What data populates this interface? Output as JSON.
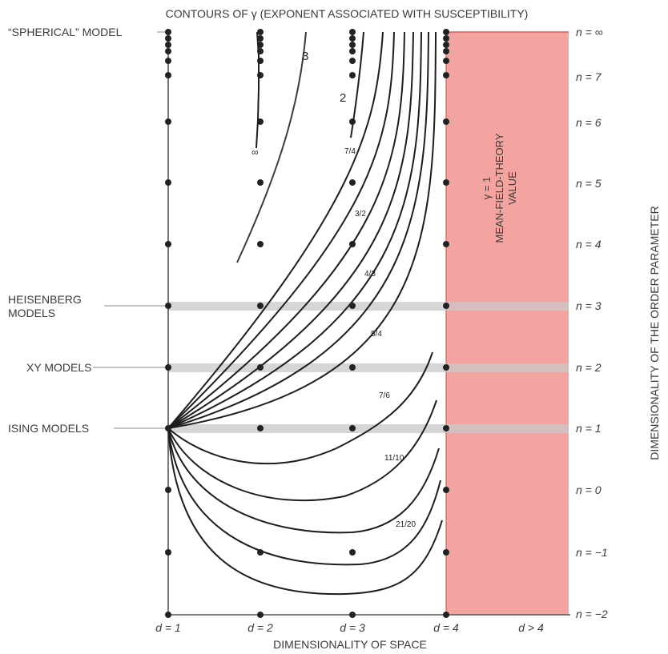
{
  "title": "CONTOURS OF γ (EXPONENT ASSOCIATED WITH SUSCEPTIBILITY)",
  "x_axis_label": "DIMENSIONALITY OF SPACE",
  "y_axis_label": "DIMENSIONALITY OF THE ORDER PARAMETER",
  "d_labels": [
    "d = 1",
    "d = 2",
    "d = 3",
    "d = 4",
    "d > 4"
  ],
  "n_labels": [
    "n = ∞",
    "n = 7",
    "n = 6",
    "n = 5",
    "n = 4",
    "n = 3",
    "n = 2",
    "n = 1",
    "n = 0",
    "n = −1",
    "n = −2"
  ],
  "model_labels": {
    "spherical": "“SPHERICAL” MODEL",
    "heisenberg_1": "HEISENBERG",
    "heisenberg_2": "MODELS",
    "xy": "XY MODELS",
    "ising": "ISING MODELS"
  },
  "mean_field": {
    "line1": "γ = 1",
    "line2": "MEAN-FIELD-THEORY",
    "line3": "VALUE",
    "color": "#f3a4a0"
  },
  "contour_labels": {
    "g3": "3",
    "g2": "2",
    "ginf": "∞",
    "g7_4": "7/4",
    "g3_2": "3/2",
    "g4_3": "4/3",
    "g5_4": "5/4",
    "g7_6": "7/6",
    "g11_10": "11/10",
    "g21_20": "21/20"
  },
  "colors": {
    "axis": "#555555",
    "curve": "#1e1e1e",
    "dot": "#222222",
    "band": "#c8c8c8",
    "mean_field_edge": "#e05a55"
  }
}
